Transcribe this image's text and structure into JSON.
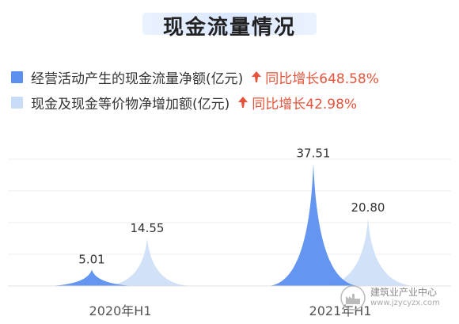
{
  "title": "现金流量情况",
  "legend": [
    {
      "label": "经营活动产生的现金流量净额(亿元)",
      "growth": "同比增长648.58%",
      "color": "#5b8ff0"
    },
    {
      "label": "现金及现金等价物净增加额(亿元)",
      "growth": "同比增长42.98%",
      "color": "#c9dcf7"
    }
  ],
  "colors": {
    "accent": "#e5533a",
    "series1": "#5b8ff0",
    "series2": "#c9dcf7"
  },
  "chart_data": {
    "type": "area",
    "categories": [
      "2020年H1",
      "2021年H1"
    ],
    "series": [
      {
        "name": "经营活动产生的现金流量净额(亿元)",
        "values": [
          5.01,
          37.51
        ]
      },
      {
        "name": "现金及现金等价物净增加额(亿元)",
        "values": [
          14.55,
          20.8
        ]
      }
    ],
    "data_labels": [
      [
        "5.01",
        "37.51"
      ],
      [
        "14.55",
        "20.80"
      ]
    ],
    "ylim": [
      0,
      40
    ],
    "grid": true
  },
  "watermark": {
    "name": "建筑业产业中心",
    "url": "www.jzycyzx.com"
  }
}
